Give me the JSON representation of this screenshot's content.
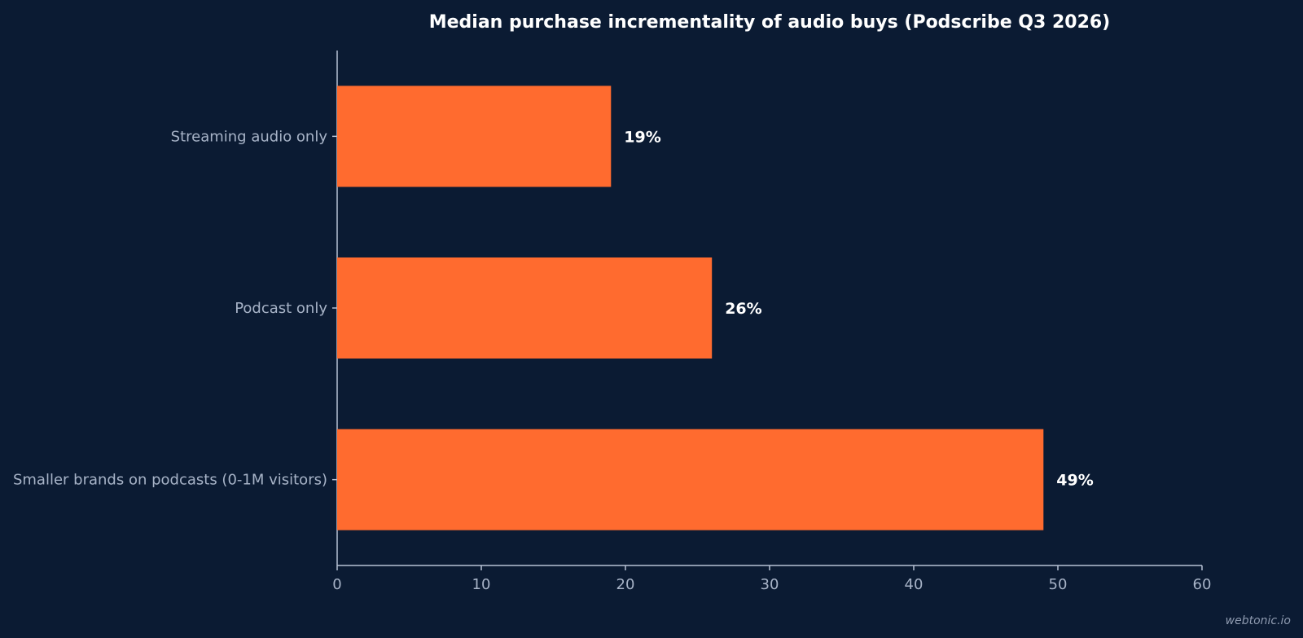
{
  "chart_data": {
    "type": "bar",
    "orientation": "horizontal",
    "title": "Median purchase incrementality of audio buys (Podscribe Q3 2026)",
    "categories": [
      "Streaming audio only",
      "Podcast only",
      "Smaller brands on podcasts (0-1M visitors)"
    ],
    "values": [
      19,
      26,
      49
    ],
    "value_labels": [
      "19%",
      "26%",
      "49%"
    ],
    "xlabel": "",
    "ylabel": "",
    "xlim": [
      0,
      60
    ],
    "xticks": [
      0,
      10,
      20,
      30,
      40,
      50,
      60
    ],
    "xtick_labels": [
      "0",
      "10",
      "20",
      "30",
      "40",
      "50",
      "60"
    ],
    "grid": false,
    "legend": "none"
  },
  "colors": {
    "background": "#0b1b33",
    "bar": "#ff6b2f",
    "axis": "#b8c2d4",
    "label_text": "#a7b3c7",
    "value_text": "#ffffff"
  },
  "watermark": "webtonic.io"
}
